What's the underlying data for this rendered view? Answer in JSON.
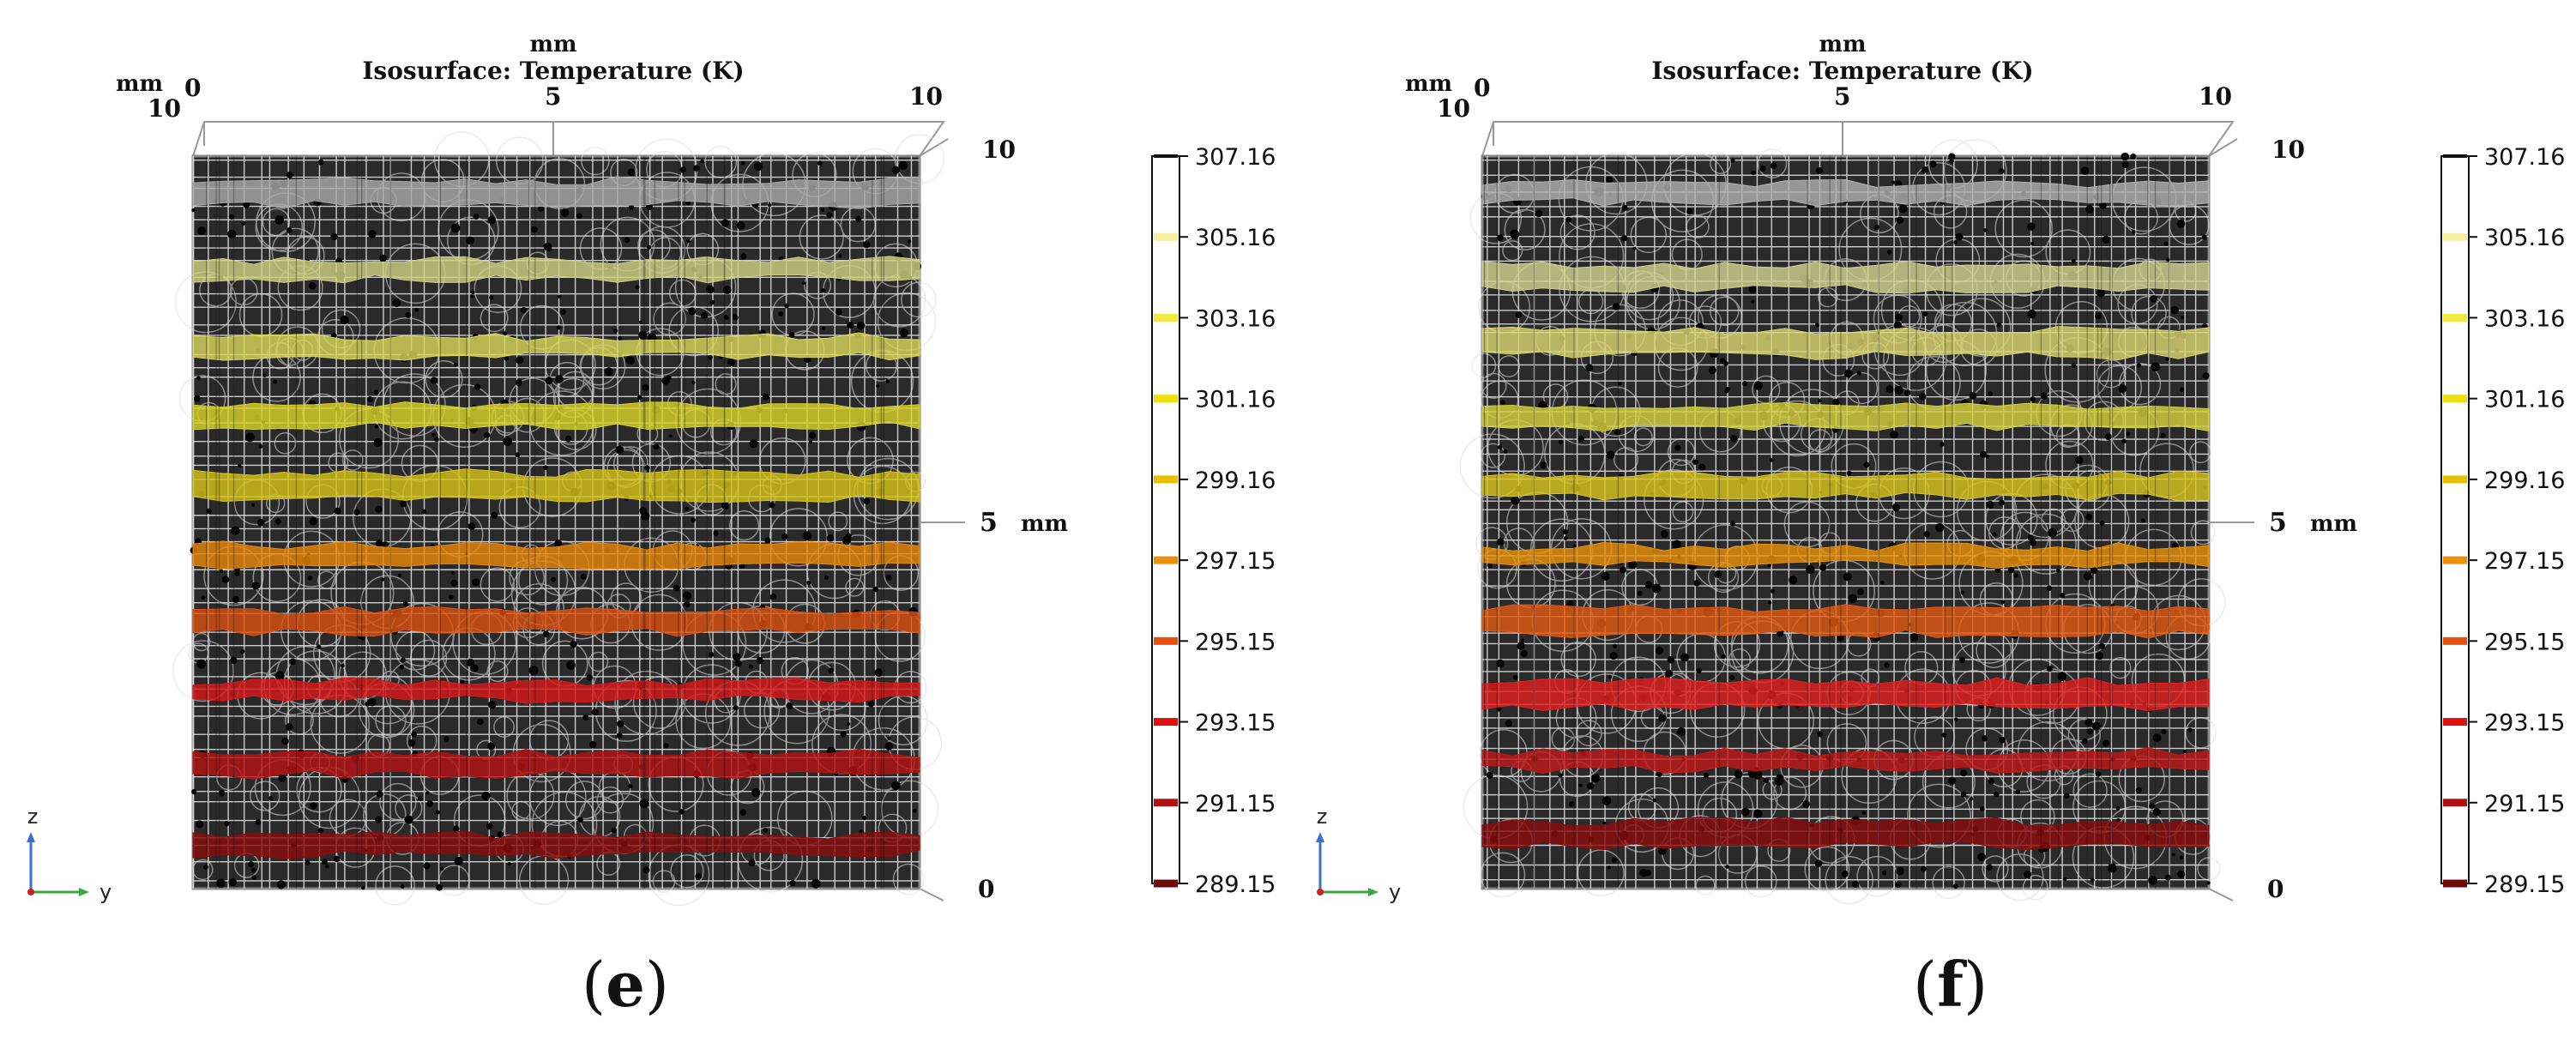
{
  "chart_data": [
    {
      "panel": "e",
      "type": "isosurface",
      "title": "Isosurface: Temperature (K)",
      "unit": "mm",
      "axes": {
        "top_unit": "mm",
        "top_ticks": [
          "0",
          "5",
          "10"
        ],
        "left_corner_label": "mm",
        "left_corner_value": "10",
        "right_unit": "mm",
        "right_ticks": [
          "10",
          "5",
          "0"
        ],
        "orientation": [
          "z",
          "y"
        ]
      },
      "colorbar": {
        "labels": [
          "307.16",
          "305.16",
          "303.16",
          "301.16",
          "299.16",
          "297.15",
          "295.15",
          "293.15",
          "291.15",
          "289.15"
        ],
        "values": [
          307.16,
          305.16,
          303.16,
          301.16,
          299.16,
          297.15,
          295.15,
          293.15,
          291.15,
          289.15
        ],
        "colors": [
          "#111111",
          "#f5eea0",
          "#f0ea40",
          "#ece010",
          "#e8c000",
          "#f0900a",
          "#e85010",
          "#e01010",
          "#b01010",
          "#700808"
        ]
      },
      "isosurfaces": [
        {
          "level": 307.16,
          "height_fraction": 0.95,
          "color": "#a8a8a8"
        },
        {
          "level": 305.16,
          "height_fraction": 0.845,
          "color": "#cfcf82"
        },
        {
          "level": 303.16,
          "height_fraction": 0.74,
          "color": "#d9d65c"
        },
        {
          "level": 301.16,
          "height_fraction": 0.645,
          "color": "#d8d22a"
        },
        {
          "level": 299.16,
          "height_fraction": 0.55,
          "color": "#d6c21a"
        },
        {
          "level": 297.15,
          "height_fraction": 0.455,
          "color": "#e8860a"
        },
        {
          "level": 295.15,
          "height_fraction": 0.365,
          "color": "#d85010"
        },
        {
          "level": 293.15,
          "height_fraction": 0.27,
          "color": "#d81818"
        },
        {
          "level": 291.15,
          "height_fraction": 0.17,
          "color": "#b41212"
        },
        {
          "level": 289.15,
          "height_fraction": 0.06,
          "color": "#8a0c0c"
        }
      ],
      "caption_letter": "e"
    },
    {
      "panel": "f",
      "type": "isosurface",
      "title": "Isosurface: Temperature (K)",
      "unit": "mm",
      "axes": {
        "top_unit": "mm",
        "top_ticks": [
          "0",
          "5",
          "10"
        ],
        "left_corner_label": "mm",
        "left_corner_value": "10",
        "right_unit": "mm",
        "right_ticks": [
          "10",
          "5",
          "0"
        ],
        "orientation": [
          "z",
          "y"
        ]
      },
      "colorbar": {
        "labels": [
          "307.16",
          "305.16",
          "303.16",
          "301.16",
          "299.16",
          "297.15",
          "295.15",
          "293.15",
          "291.15",
          "289.15"
        ],
        "values": [
          307.16,
          305.16,
          303.16,
          301.16,
          299.16,
          297.15,
          295.15,
          293.15,
          291.15,
          289.15
        ],
        "colors": [
          "#111111",
          "#f5eea0",
          "#f0ea40",
          "#ece010",
          "#e8c000",
          "#f0900a",
          "#e85010",
          "#e01010",
          "#b01010",
          "#700808"
        ]
      },
      "isosurfaces": [
        {
          "level": 307.16,
          "height_fraction": 0.95,
          "color": "#b0b0b0"
        },
        {
          "level": 305.16,
          "height_fraction": 0.835,
          "color": "#d2d290"
        },
        {
          "level": 303.16,
          "height_fraction": 0.745,
          "color": "#d9d470"
        },
        {
          "level": 301.16,
          "height_fraction": 0.645,
          "color": "#d6d040"
        },
        {
          "level": 299.16,
          "height_fraction": 0.55,
          "color": "#d8c420"
        },
        {
          "level": 297.15,
          "height_fraction": 0.455,
          "color": "#e8900a"
        },
        {
          "level": 295.15,
          "height_fraction": 0.365,
          "color": "#e05a12"
        },
        {
          "level": 293.15,
          "height_fraction": 0.265,
          "color": "#e02020"
        },
        {
          "level": 291.15,
          "height_fraction": 0.175,
          "color": "#c01818"
        },
        {
          "level": 289.15,
          "height_fraction": 0.075,
          "color": "#8a0c0c"
        }
      ],
      "caption_letter": "f"
    }
  ],
  "captions": {
    "open": "(",
    "close": ")"
  }
}
